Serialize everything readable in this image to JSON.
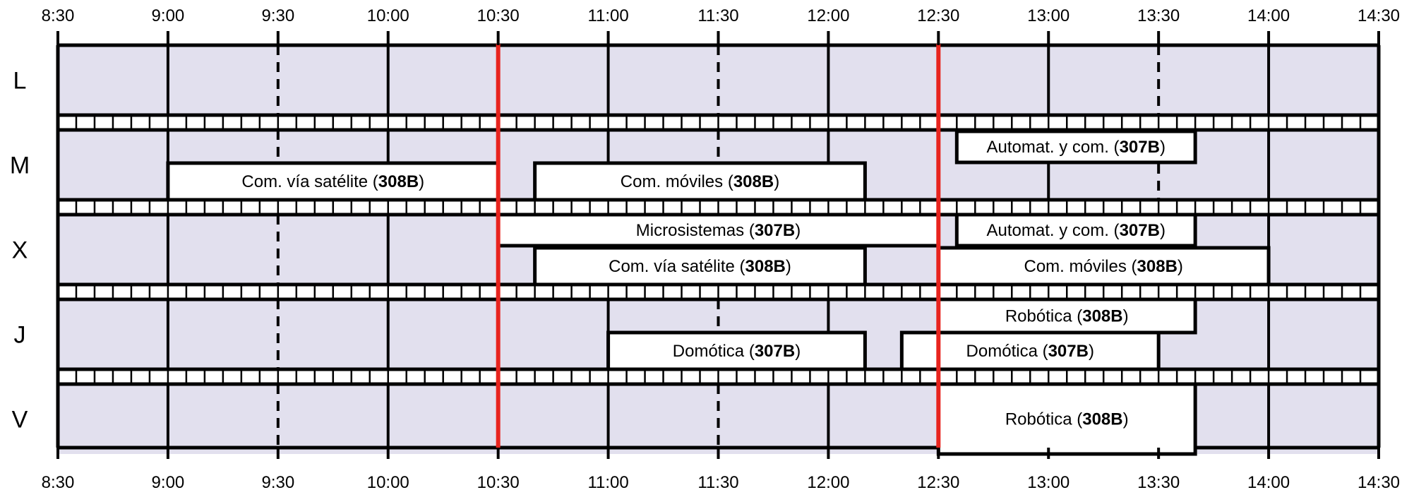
{
  "schedule": {
    "time_ticks": [
      "8:30",
      "9:00",
      "9:30",
      "10:00",
      "10:30",
      "11:00",
      "11:30",
      "12:00",
      "12:30",
      "13:00",
      "13:30",
      "14:00",
      "14:30"
    ],
    "days": [
      "L",
      "M",
      "X",
      "J",
      "V"
    ],
    "highlight_times": [
      "10:30",
      "12:30"
    ],
    "colors": {
      "background": "#e2e0ee",
      "highlight": "#e8241e",
      "grid": "#000000",
      "event_fill": "#ffffff"
    },
    "events": [
      {
        "day": "M",
        "lane": "top",
        "start": "12:35",
        "end": "13:40",
        "title": "Automat. y com.",
        "room": "307B"
      },
      {
        "day": "M",
        "lane": "bottom",
        "start": "9:00",
        "end": "10:30",
        "title": "Com. vía satélite",
        "room": "308B"
      },
      {
        "day": "M",
        "lane": "bottom",
        "start": "10:40",
        "end": "12:10",
        "title": "Com. móviles",
        "room": "308B"
      },
      {
        "day": "X",
        "lane": "top",
        "start": "10:30",
        "end": "12:30",
        "title": "Microsistemas",
        "room": "307B"
      },
      {
        "day": "X",
        "lane": "top",
        "start": "12:35",
        "end": "13:40",
        "title": "Automat. y com.",
        "room": "307B"
      },
      {
        "day": "X",
        "lane": "bottom",
        "start": "10:40",
        "end": "12:10",
        "title": "Com. vía satélite",
        "room": "308B"
      },
      {
        "day": "X",
        "lane": "bottom",
        "start": "12:30",
        "end": "14:00",
        "title": "Com. móviles",
        "room": "308B"
      },
      {
        "day": "J",
        "lane": "top",
        "start": "12:30",
        "end": "13:40",
        "title": "Robótica",
        "room": "308B"
      },
      {
        "day": "J",
        "lane": "bottom",
        "start": "11:00",
        "end": "12:10",
        "title": "Domótica",
        "room": "307B"
      },
      {
        "day": "J",
        "lane": "bottom",
        "start": "12:20",
        "end": "13:30",
        "title": "Domótica",
        "room": "307B"
      },
      {
        "day": "V",
        "lane": "full",
        "start": "12:30",
        "end": "13:40",
        "title": "Robótica",
        "room": "308B"
      }
    ]
  }
}
